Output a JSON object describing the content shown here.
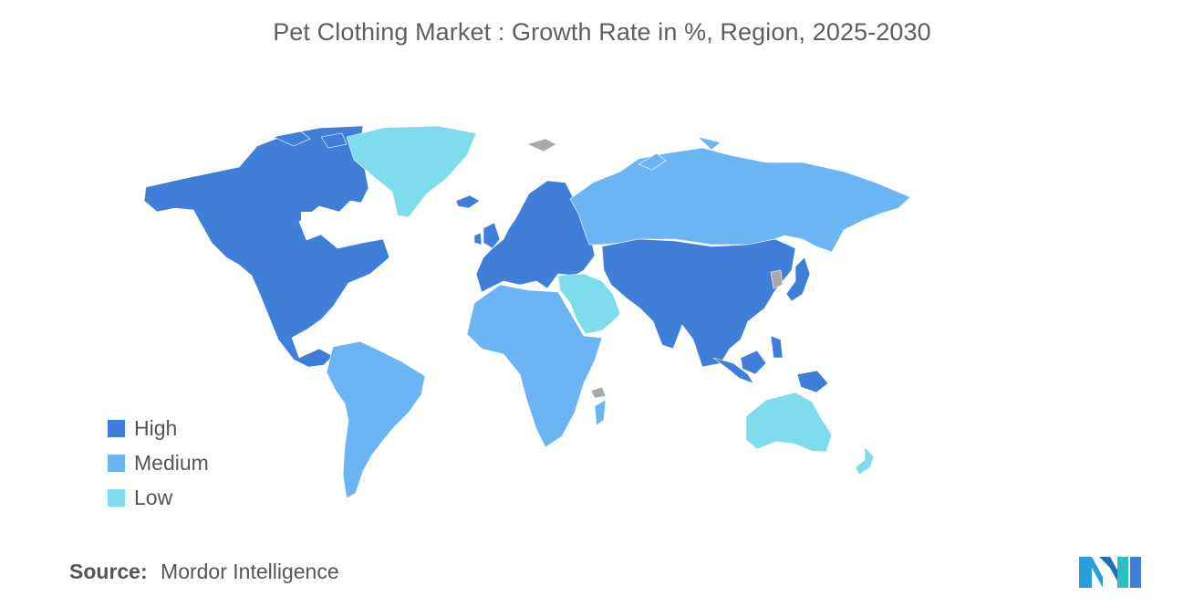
{
  "title": "Pet Clothing Market : Growth Rate in %, Region, 2025-2030",
  "legend": [
    {
      "label": "High",
      "color": "#3f7fd9"
    },
    {
      "label": "Medium",
      "color": "#6cb5f5"
    },
    {
      "label": "Low",
      "color": "#7fdcec"
    }
  ],
  "no_data_color": "#a9a9a9",
  "source": {
    "label": "Source:",
    "value": "Mordor Intelligence"
  },
  "regions": {
    "north_america": "High",
    "europe": "High",
    "asia_pacific": "High",
    "russia": "Medium",
    "south_america": "Medium",
    "africa": "Medium",
    "middle_east": "Low",
    "greenland": "Low",
    "australia_new_zealand": "Low"
  }
}
